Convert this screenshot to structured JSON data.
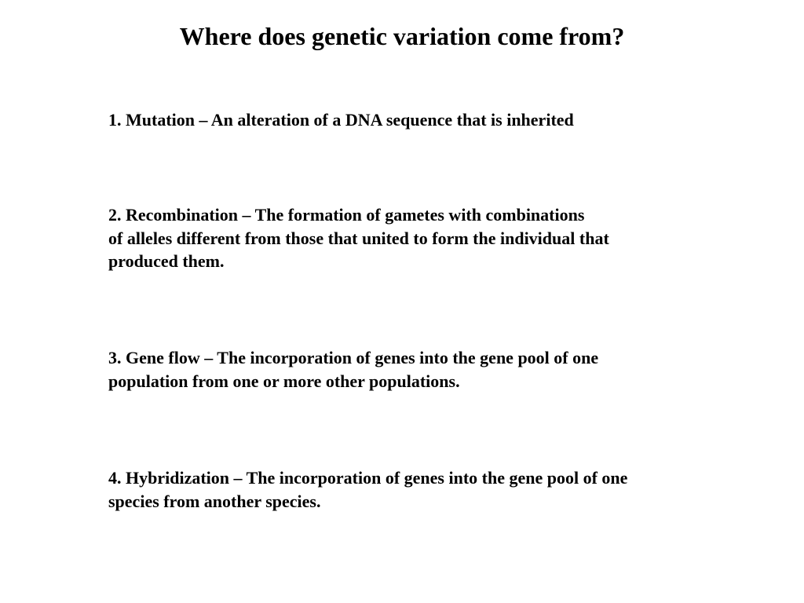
{
  "slide": {
    "title": "Where does genetic variation come from?",
    "items": [
      {
        "text": "1. Mutation – An alteration of a DNA sequence that is inherited"
      },
      {
        "text": "2. Recombination – The formation of gametes with combinations\n    of alleles different from those that united to form the individual that\n    produced them."
      },
      {
        "text": "3. Gene flow – The incorporation of genes into the gene pool of one\n    population from one or more other populations."
      },
      {
        "text": "4. Hybridization – The incorporation of genes into the gene pool of one\n    species from another species."
      }
    ],
    "style": {
      "background_color": "#ffffff",
      "text_color": "#000000",
      "font_family": "Times New Roman",
      "title_fontsize": 32,
      "title_fontweight": "bold",
      "body_fontsize": 22,
      "body_fontweight": "bold",
      "line_height": 1.35
    }
  }
}
